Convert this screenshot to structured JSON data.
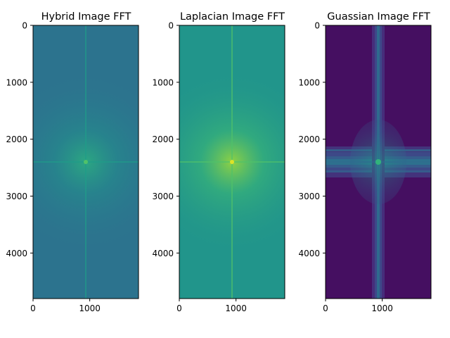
{
  "chart_data": [
    {
      "type": "heatmap",
      "title": "Hybrid Image FFT",
      "colormap": "viridis",
      "xlim": [
        0,
        1860
      ],
      "ylim": [
        4800,
        0
      ],
      "xticks": [
        0,
        1000
      ],
      "yticks": [
        0,
        1000,
        2000,
        3000,
        4000
      ],
      "center": [
        930,
        2400
      ],
      "background_level": 0.38,
      "center_level": 0.62,
      "cross_level": 0.55
    },
    {
      "type": "heatmap",
      "title": "Laplacian Image FFT",
      "colormap": "viridis",
      "xlim": [
        0,
        1860
      ],
      "ylim": [
        4800,
        0
      ],
      "xticks": [
        0,
        1000
      ],
      "yticks": [
        0,
        1000,
        2000,
        3000,
        4000
      ],
      "center": [
        930,
        2400
      ],
      "background_level": 0.52,
      "center_level": 0.85,
      "cross_level": 0.72
    },
    {
      "type": "heatmap",
      "title": "Guassian Image FFT",
      "colormap": "viridis",
      "xlim": [
        0,
        1860
      ],
      "ylim": [
        4800,
        0
      ],
      "xticks": [
        0,
        1000
      ],
      "yticks": [
        0,
        1000,
        2000,
        3000,
        4000
      ],
      "center": [
        930,
        2400
      ],
      "background_level": 0.04,
      "center_level": 0.55,
      "cross_level": 0.35
    }
  ]
}
